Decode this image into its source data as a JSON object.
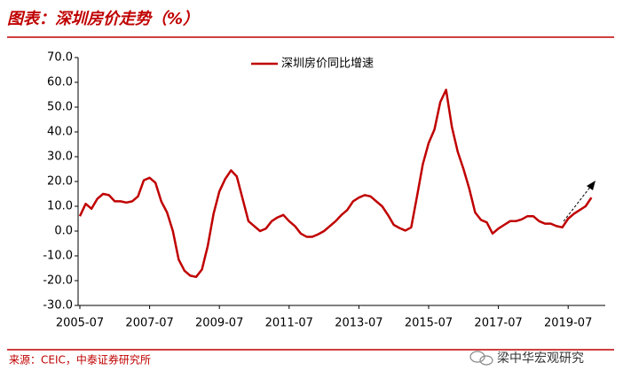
{
  "chart_data": {
    "type": "line",
    "title": "图表：深圳房价走势（%）",
    "source": "来源：CEIC，中泰证券研究所",
    "watermark": "梁中华宏观研究",
    "categories": [
      "2005-07",
      null,
      null,
      null,
      null,
      null,
      null,
      null,
      null,
      null,
      null,
      null,
      "2007-07",
      null,
      null,
      null,
      null,
      null,
      null,
      null,
      null,
      null,
      null,
      null,
      "2009-07",
      null,
      null,
      null,
      null,
      null,
      null,
      null,
      null,
      null,
      null,
      null,
      "2011-07",
      null,
      null,
      null,
      null,
      null,
      null,
      null,
      null,
      null,
      null,
      null,
      "2013-07",
      null,
      null,
      null,
      null,
      null,
      null,
      null,
      null,
      null,
      null,
      null,
      "2015-07",
      null,
      null,
      null,
      null,
      null,
      null,
      null,
      null,
      null,
      null,
      null,
      "2017-07",
      null,
      null,
      null,
      null,
      null,
      null,
      null,
      null,
      null,
      null,
      null,
      "2019-07",
      null,
      null,
      null,
      null
    ],
    "series": [
      {
        "name": "深圳房价同比增速",
        "color": "#c00000",
        "values": [
          6,
          11,
          9,
          13,
          15,
          14.5,
          12,
          12,
          11.5,
          12,
          14,
          20.5,
          21.5,
          19.5,
          12,
          7.5,
          0,
          -11.5,
          -16,
          -18,
          -18.5,
          -15.5,
          -6,
          7,
          16,
          21,
          24.5,
          22,
          13,
          4,
          2,
          0,
          1,
          4,
          5.5,
          6.5,
          4,
          2,
          -1,
          -2.3,
          -2.3,
          -1.3,
          0,
          2,
          4,
          6.5,
          8.5,
          12,
          13.5,
          14.5,
          14,
          12,
          10,
          6.5,
          2.5,
          1.2,
          0.2,
          1.5,
          14,
          27,
          35.5,
          41,
          52,
          57,
          42,
          32,
          25,
          17,
          7.5,
          4.5,
          3.5,
          -1,
          1,
          2.5,
          4,
          4,
          4.7,
          6,
          6,
          4,
          3,
          3,
          2,
          1.5,
          5,
          7,
          8.5,
          10,
          13.5
        ]
      }
    ],
    "ylim": [
      -30,
      70
    ],
    "yticks": [
      {
        "value": -30,
        "label": "-30.0"
      },
      {
        "value": -20,
        "label": "-20.0"
      },
      {
        "value": -10,
        "label": "-10.0"
      },
      {
        "value": 0,
        "label": "0.0"
      },
      {
        "value": 10,
        "label": "10.0"
      },
      {
        "value": 20,
        "label": "20.0"
      },
      {
        "value": 30,
        "label": "30.0"
      },
      {
        "value": 40,
        "label": "40.0"
      },
      {
        "value": 50,
        "label": "50.0"
      },
      {
        "value": 60,
        "label": "60.0"
      },
      {
        "value": 70,
        "label": "70.0"
      }
    ],
    "grid": false
  }
}
